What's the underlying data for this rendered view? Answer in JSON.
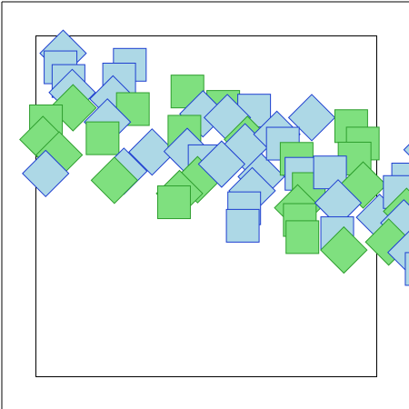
{
  "figure": {
    "background": "#ffffff",
    "frame_stroke": "#000000",
    "shape_kinds": [
      "upright-square",
      "diamond"
    ],
    "colors": {
      "green_fill": "#7fe07f",
      "green_stroke": "#2e9e2e",
      "blue_fill": "#add8e6",
      "blue_stroke": "#1e3fd0"
    }
  }
}
